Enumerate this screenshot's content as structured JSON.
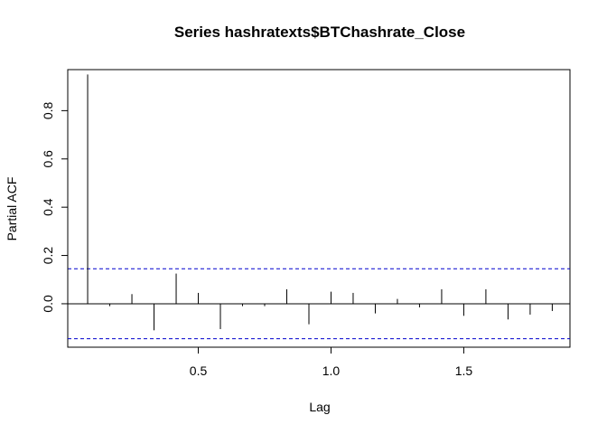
{
  "chart_data": {
    "type": "bar",
    "title": "Series  hashratexts$BTChashrate_Close",
    "xlabel": "Lag",
    "ylabel": "Partial ACF",
    "xlim": [
      0.0083,
      1.9
    ],
    "ylim": [
      -0.18,
      0.97
    ],
    "x_ticks": [
      0.5,
      1.0,
      1.5
    ],
    "x_tick_labels": [
      "0.5",
      "1.0",
      "1.5"
    ],
    "y_ticks": [
      0.0,
      0.2,
      0.4,
      0.6,
      0.8
    ],
    "y_tick_labels": [
      "0.0",
      "0.2",
      "0.4",
      "0.6",
      "0.8"
    ],
    "confidence_bound": 0.145,
    "lags": [
      0.0833,
      0.1667,
      0.25,
      0.3333,
      0.4167,
      0.5,
      0.5833,
      0.6667,
      0.75,
      0.8333,
      0.9167,
      1.0,
      1.0833,
      1.1667,
      1.25,
      1.3333,
      1.4167,
      1.5,
      1.5833,
      1.6667,
      1.75,
      1.8333
    ],
    "values": [
      0.95,
      -0.01,
      0.04,
      -0.11,
      0.125,
      0.045,
      -0.105,
      -0.01,
      -0.01,
      0.06,
      -0.085,
      0.05,
      0.045,
      -0.04,
      0.02,
      -0.015,
      0.06,
      -0.05,
      0.06,
      -0.065,
      -0.045,
      -0.03
    ],
    "colors": {
      "bars": "#000000",
      "bounds": "#0000cd",
      "zero_line": "#000000"
    }
  }
}
